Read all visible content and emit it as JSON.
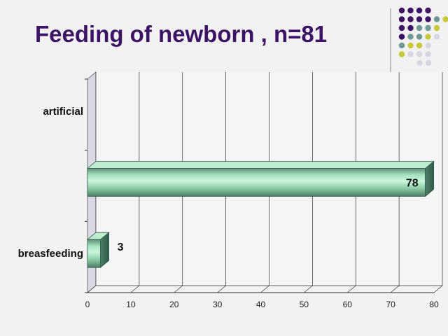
{
  "slide": {
    "title": "Feeding of newborn , n=81"
  },
  "decoration": {
    "dot_colors": [
      "#3d1366",
      "#6f9a93",
      "#c8c83a",
      "#d6d6e2"
    ]
  },
  "chart_data": {
    "type": "bar",
    "orientation": "horizontal",
    "style": "3d-cylinder",
    "categories": [
      "breasfeeding",
      "",
      "artificial"
    ],
    "values": [
      3,
      78,
      null
    ],
    "data_labels": [
      "3",
      "78",
      ""
    ],
    "xlim": [
      0,
      80
    ],
    "xticks": [
      0,
      10,
      20,
      30,
      40,
      50,
      60,
      70,
      80
    ],
    "grid": true,
    "legend": "none",
    "colors": {
      "bar_face": "#9fe0b8",
      "bar_dark": "#3f7a60",
      "wall": "#d8d8e6",
      "grid": "#333333"
    }
  }
}
